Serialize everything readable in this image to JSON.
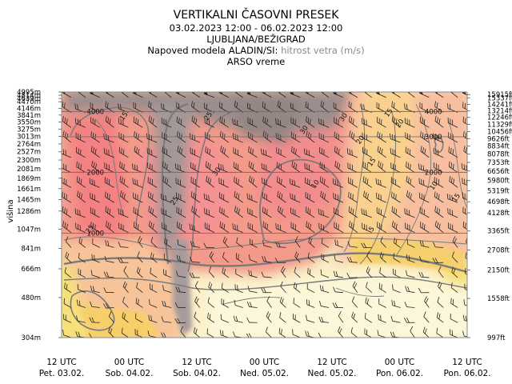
{
  "title": "VERTIKALNI ČASOVNI PRESEK",
  "period": "03.02.2023 12:00 - 06.02.2023 12:00",
  "location": "LJUBLJANA/BEŽIGRAD",
  "model_prefix": "Napoved modela ALADIN/SI: ",
  "variable": "hitrost vetra (m/s)",
  "source": "ARSO vreme",
  "colors": {
    "accent_text": "#8a8a8a",
    "contour": "#7a7a7a",
    "grid": "#6e6e6e"
  },
  "chart_data": {
    "type": "heatmap",
    "title": "VERTIKALNI ČASOVNI PRESEK",
    "ylabel": "višina",
    "x_labels": [
      {
        "time": "12 UTC",
        "date": "Pet. 03.02."
      },
      {
        "time": "00 UTC",
        "date": "Sob. 04.02."
      },
      {
        "time": "12 UTC",
        "date": "Sob. 04.02."
      },
      {
        "time": "00 UTC",
        "date": "Ned. 05.02."
      },
      {
        "time": "12 UTC",
        "date": "Ned. 05.02."
      },
      {
        "time": "00 UTC",
        "date": "Pon. 06.02."
      },
      {
        "time": "12 UTC",
        "date": "Pon. 06.02."
      }
    ],
    "x_hours": [
      0,
      12,
      24,
      36,
      48,
      60,
      72
    ],
    "x_range_hours": [
      0,
      72
    ],
    "y_range_m": [
      304,
      4995
    ],
    "left_ticks_m": [
      {
        "v": 4995,
        "label": "4995m"
      },
      {
        "v": 4814,
        "label": "4814m"
      },
      {
        "v": 4639,
        "label": "4639m"
      },
      {
        "v": 4470,
        "label": "4470m"
      },
      {
        "v": 4146,
        "label": "4146m"
      },
      {
        "v": 3841,
        "label": "3841m"
      },
      {
        "v": 3550,
        "label": "3550m"
      },
      {
        "v": 3275,
        "label": "3275m"
      },
      {
        "v": 3013,
        "label": "3013m"
      },
      {
        "v": 2764,
        "label": "2764m"
      },
      {
        "v": 2527,
        "label": "2527m"
      },
      {
        "v": 2300,
        "label": "2300m"
      },
      {
        "v": 2081,
        "label": "2081m"
      },
      {
        "v": 1869,
        "label": "1869m"
      },
      {
        "v": 1661,
        "label": "1661m"
      },
      {
        "v": 1465,
        "label": "1465m"
      },
      {
        "v": 1286,
        "label": "1286m"
      },
      {
        "v": 1047,
        "label": "1047m"
      },
      {
        "v": 841,
        "label": "841m"
      },
      {
        "v": 666,
        "label": "666m"
      },
      {
        "v": 480,
        "label": "480m"
      },
      {
        "v": 304,
        "label": "304m"
      }
    ],
    "right_ticks_ft": [
      {
        "v": 4850,
        "label": "15915ft"
      },
      {
        "v": 4675,
        "label": "15337ft"
      },
      {
        "v": 4340,
        "label": "14241ft"
      },
      {
        "v": 4025,
        "label": "13214ft"
      },
      {
        "v": 3740,
        "label": "12246ft"
      },
      {
        "v": 3450,
        "label": "11329ft"
      },
      {
        "v": 3185,
        "label": "10456ft"
      },
      {
        "v": 2935,
        "label": "9626ft"
      },
      {
        "v": 2695,
        "label": "8834ft"
      },
      {
        "v": 2460,
        "label": "8078ft"
      },
      {
        "v": 2240,
        "label": "7353ft"
      },
      {
        "v": 2030,
        "label": "6656ft"
      },
      {
        "v": 1820,
        "label": "5980ft"
      },
      {
        "v": 1620,
        "label": "5319ft"
      },
      {
        "v": 1430,
        "label": "4698ft"
      },
      {
        "v": 1260,
        "label": "4128ft"
      },
      {
        "v": 1025,
        "label": "3365ft"
      },
      {
        "v": 825,
        "label": "2708ft"
      },
      {
        "v": 656,
        "label": "2150ft"
      },
      {
        "v": 475,
        "label": "1558ft"
      },
      {
        "v": 304,
        "label": "997ft"
      }
    ],
    "gridlines_m": [
      1000,
      2000,
      3000,
      4000
    ],
    "inplot_height_labels": [
      {
        "h": 6,
        "m": 4000,
        "text": "4000"
      },
      {
        "h": 66,
        "m": 4000,
        "text": "4000"
      },
      {
        "h": 66,
        "m": 3000,
        "text": "3000"
      },
      {
        "h": 6,
        "m": 2000,
        "text": "2000"
      },
      {
        "h": 66,
        "m": 2000,
        "text": "2000"
      },
      {
        "h": 6,
        "m": 1000,
        "text": "1000"
      }
    ],
    "contour_labels": [
      {
        "h": 11,
        "m": 3800,
        "text": "15"
      },
      {
        "h": 26,
        "m": 3800,
        "text": "25"
      },
      {
        "h": 43,
        "m": 3250,
        "text": "30"
      },
      {
        "h": 27.5,
        "m": 2020,
        "text": "30"
      },
      {
        "h": 20,
        "m": 1450,
        "text": "25"
      },
      {
        "h": 5,
        "m": 1050,
        "text": "25"
      },
      {
        "h": 50,
        "m": 3750,
        "text": "30"
      },
      {
        "h": 58,
        "m": 3950,
        "text": "15"
      },
      {
        "h": 60,
        "m": 3500,
        "text": "20"
      },
      {
        "h": 53,
        "m": 2900,
        "text": "20"
      },
      {
        "h": 55,
        "m": 2250,
        "text": "15"
      },
      {
        "h": 45,
        "m": 1750,
        "text": "10"
      },
      {
        "h": 66,
        "m": 1720,
        "text": "10"
      },
      {
        "h": 55,
        "m": 1050,
        "text": "5"
      },
      {
        "h": 70,
        "m": 1500,
        "text": "15"
      }
    ],
    "legend": "none"
  }
}
